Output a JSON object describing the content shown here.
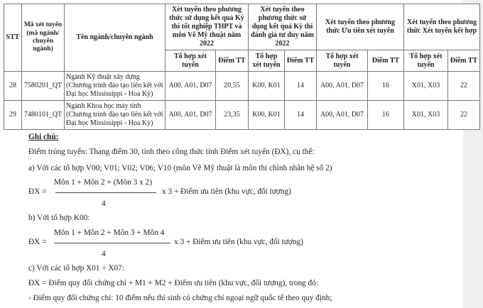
{
  "table": {
    "headers": {
      "stt": "STT",
      "code": "Mã xét tuyển (mã ngành/ chuyên ngành)",
      "name": "Tên ngành/chuyên ngành",
      "g1": "Xét tuyển theo phương thức sử dụng kết quả Kỳ thi tốt nghiệp THPT và môn Vẽ Mỹ thuật năm 2022",
      "g2": "Xét tuyển theo phương thức sử dụng kết quả Kỳ thi đánh giá tư duy năm 2022",
      "g3": "Xét tuyển theo phương thức Ưu tiên xét tuyển",
      "g4": "Xét tuyển theo phương thức Xét tuyển kết hợp",
      "combo": "Tổ hợp xét tuyển",
      "score": "Điểm TT"
    },
    "rows": [
      {
        "stt": "28",
        "code": "7580201_QT",
        "name": "Ngành Kỹ thuật xây dựng (Chương trình đào tạo liên kết với Đại học Mississippi -  Hoa Kỳ)",
        "c1": "A00, A01, D07",
        "s1": "20,55",
        "c2": "K00, K01",
        "s2": "14",
        "c3": "A00, A01, D07",
        "s3": "16",
        "c4": "X01, X03",
        "s4": "22"
      },
      {
        "stt": "29",
        "code": "7480101_QT",
        "name": "Ngành Khoa học máy tính (Chương trình đào tạo liên kết với Đại học Mississippi - Hoa Kỳ)",
        "c1": "A00, A01, D07",
        "s1": "23,35",
        "c2": "K00, K01",
        "s2": "14",
        "c3": "A00, A01, D07",
        "s3": "16",
        "c4": "X01, X03",
        "s4": "22"
      }
    ]
  },
  "notes": {
    "title": "Ghi chú:",
    "intro": "Điểm trúng tuyển: Thang điểm 30, tính theo công thức tính Điểm xét tuyển (ĐX), cụ thể:",
    "a": "a)  Với các tổ hợp V00; V01; V02; V06; V10 (môn Vẽ Mỹ thuật là môn thi chính nhân hệ số 2)",
    "a_num": "Môn 1 + Môn 2 + (Môn 3 x 2)",
    "dx": "ĐX =",
    "den": "4",
    "rest": "x 3 + Điểm ưu tiên (khu vực, đối tượng)",
    "b": "b) Với tổ hợp K00:",
    "b_num": "Môn 1 + Môn 2 + Môn 3 + Môn 4",
    "c": "c) Với các tổ hợp X01 ÷ X07:",
    "c_formula": "ĐX = Điểm quy đổi chứng chỉ + M1 + M2 + Điểm ưu tiên (khu vực, đối tượng), trong đó:",
    "c_note": "- Điểm quy đổi chứng chỉ: 10 điểm nếu thí sinh có chứng chỉ ngoại ngữ quốc tế theo quy định;"
  }
}
